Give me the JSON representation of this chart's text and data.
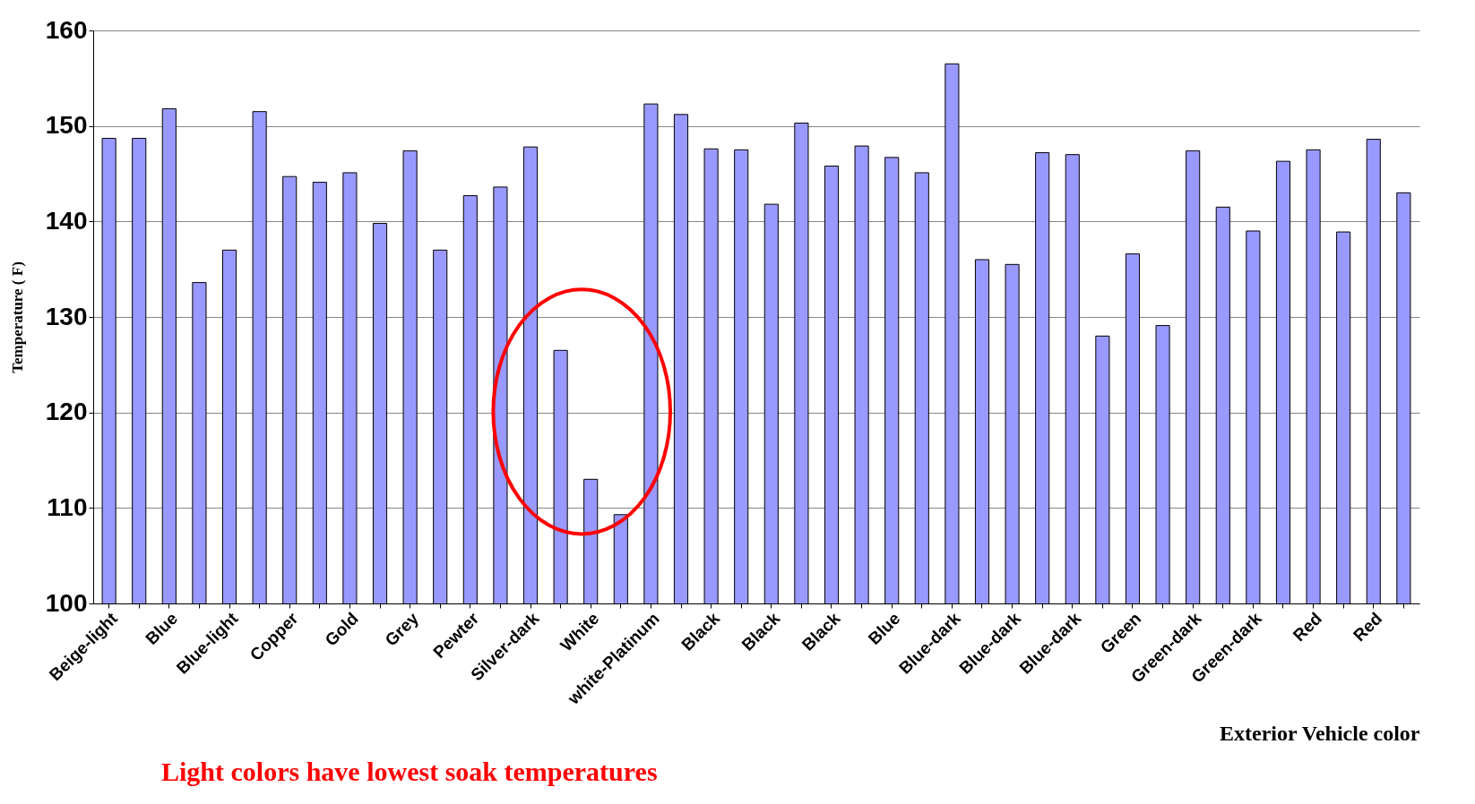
{
  "chart_data": {
    "type": "bar",
    "xlabel": "Exterior Vehicle color",
    "ylabel": "Temperature ( F)",
    "annotations": [
      "Light colors have lowest soak temperatures"
    ],
    "categories": [
      "Beige-light",
      null,
      "Blue",
      null,
      "Blue-light",
      null,
      "Copper",
      null,
      "Gold",
      null,
      "Grey",
      null,
      "Pewter",
      null,
      "Silver-dark",
      null,
      "White",
      null,
      "white-Platinum",
      null,
      "Black",
      null,
      "Black",
      null,
      "Black",
      null,
      "Blue",
      null,
      "Blue-dark",
      null,
      "Blue-dark",
      null,
      "Blue-dark",
      null,
      "Green",
      null,
      "Green-dark",
      null,
      "Green-dark",
      null,
      "Red",
      null,
      "Red",
      null
    ],
    "series": [
      {
        "color": "#9999ff",
        "values": [
          148.7,
          148.7,
          151.8,
          133.6,
          137.0,
          151.5,
          144.7,
          144.1,
          145.1,
          139.8,
          147.4,
          137.0,
          142.7,
          143.6,
          147.8,
          126.5,
          113.0,
          109.3,
          152.3,
          151.2,
          147.6,
          147.5,
          141.8,
          150.3,
          145.8,
          147.9,
          146.7,
          145.1,
          156.5,
          136.0,
          135.5,
          147.2,
          147.0,
          128.0,
          136.6,
          129.1,
          147.4,
          141.5,
          139.0,
          146.3,
          147.5,
          138.9,
          148.6,
          143.0
        ]
      }
    ],
    "ylim": [
      100,
      160
    ],
    "yticks": [
      100,
      110,
      120,
      130,
      140,
      150,
      160
    ],
    "grid": "y"
  }
}
